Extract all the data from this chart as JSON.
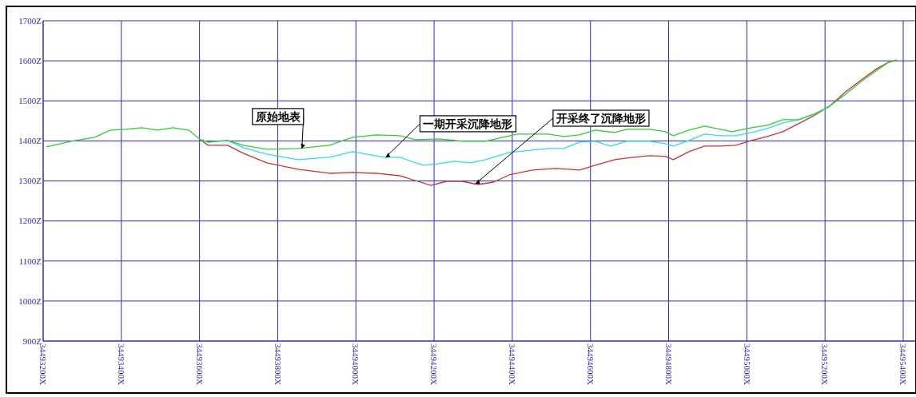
{
  "chart_data": {
    "type": "line",
    "grid": true,
    "marker": "none",
    "line_style": "solid",
    "xlim": [
      34493200,
      34495400
    ],
    "xticks": [
      {
        "value": 34493200,
        "label": "34493200X"
      },
      {
        "value": 34493400,
        "label": "34493400X"
      },
      {
        "value": 34493600,
        "label": "34493600X"
      },
      {
        "value": 34493800,
        "label": "34493800X"
      },
      {
        "value": 34494000,
        "label": "34494000X"
      },
      {
        "value": 34494200,
        "label": "34494200X"
      },
      {
        "value": 34494400,
        "label": "34494400X"
      },
      {
        "value": 34494600,
        "label": "34494600X"
      },
      {
        "value": 34494800,
        "label": "34494800X"
      },
      {
        "value": 34495000,
        "label": "34495000X"
      },
      {
        "value": 34495200,
        "label": "34495200X"
      },
      {
        "value": 34495400,
        "label": "34495400X"
      }
    ],
    "ylim": [
      900,
      1700
    ],
    "yticks": [
      {
        "value": 900,
        "label": "900Z"
      },
      {
        "value": 1000,
        "label": "1000Z"
      },
      {
        "value": 1100,
        "label": "1100Z"
      },
      {
        "value": 1200,
        "label": "1200Z"
      },
      {
        "value": 1300,
        "label": "1300Z"
      },
      {
        "value": 1400,
        "label": "1400Z"
      },
      {
        "value": 1500,
        "label": "1500Z"
      },
      {
        "value": 1600,
        "label": "1600Z"
      },
      {
        "value": 1700,
        "label": "1700Z"
      }
    ],
    "series": [
      {
        "color": "#cc3333",
        "x": [
          34493602,
          34493622,
          34493672,
          34493712,
          34493772,
          34493852,
          34493932,
          34493992,
          34494052,
          34494112,
          34494152,
          34494192,
          34494232,
          34494272,
          34494312,
          34494352,
          34494392,
          34494452,
          34494512,
          34494572,
          34494612,
          34494662,
          34494692,
          34494752,
          34494792,
          34494812,
          34494852,
          34494892,
          34494932,
          34494972,
          34495012,
          34495052,
          34495092,
          34495132,
          34495172,
          34495212,
          34495252,
          34495292,
          34495332,
          34495362,
          34495384
        ],
        "values": [
          1403,
          1389,
          1389,
          1369,
          1345,
          1329,
          1319,
          1321,
          1319,
          1313,
          1301,
          1289,
          1299,
          1299,
          1291,
          1297,
          1315,
          1327,
          1331,
          1327,
          1339,
          1353,
          1357,
          1363,
          1361,
          1353,
          1373,
          1387,
          1387,
          1389,
          1401,
          1411,
          1423,
          1443,
          1463,
          1487,
          1522,
          1552,
          1580,
          1596,
          1602
        ]
      },
      {
        "color": "#33dddd",
        "x": [
          34493602,
          34493622,
          34493672,
          34493712,
          34493772,
          34493852,
          34493932,
          34493992,
          34494072,
          34494112,
          34494172,
          34494212,
          34494252,
          34494292,
          34494332,
          34494392,
          34494452,
          34494492,
          34494532,
          34494572,
          34494612,
          34494652,
          34494692,
          34494752,
          34494792,
          34494812,
          34494852,
          34494892,
          34494932,
          34494972,
          34495012,
          34495052,
          34495092,
          34495132,
          34495172,
          34495212
        ],
        "values": [
          1403,
          1397,
          1401,
          1383,
          1367,
          1353,
          1359,
          1373,
          1359,
          1359,
          1339,
          1343,
          1349,
          1345,
          1353,
          1371,
          1377,
          1381,
          1381,
          1397,
          1399,
          1387,
          1399,
          1399,
          1393,
          1387,
          1401,
          1417,
          1413,
          1413,
          1421,
          1431,
          1445,
          1453,
          1467,
          1485
        ]
      },
      {
        "color": "#33cc33",
        "x": [
          34493208,
          34493272,
          34493332,
          34493372,
          34493412,
          34493452,
          34493492,
          34493532,
          34493572,
          34493602,
          34493622,
          34493672,
          34493712,
          34493772,
          34493852,
          34493932,
          34493992,
          34494052,
          34494112,
          34494152,
          34494212,
          34494272,
          34494332,
          34494412,
          34494492,
          34494532,
          34494572,
          34494612,
          34494662,
          34494692,
          34494752,
          34494792,
          34494812,
          34494852,
          34494892,
          34494932,
          34494962,
          34495012,
          34495052,
          34495092,
          34495132,
          34495172,
          34495212,
          34495252,
          34495292,
          34495332,
          34495362,
          34495384
        ],
        "values": [
          1385,
          1399,
          1409,
          1427,
          1429,
          1433,
          1427,
          1433,
          1427,
          1403,
          1397,
          1401,
          1389,
          1379,
          1381,
          1389,
          1409,
          1415,
          1413,
          1403,
          1405,
          1399,
          1399,
          1417,
          1417,
          1411,
          1415,
          1427,
          1421,
          1429,
          1429,
          1423,
          1413,
          1427,
          1437,
          1429,
          1423,
          1433,
          1439,
          1453,
          1453,
          1467,
          1487,
          1516,
          1548,
          1576,
          1596,
          1602
        ]
      }
    ],
    "annotations": [
      {
        "text": "原始地表",
        "x": 34493862,
        "y": 1381
      },
      {
        "text": "一期开采沉降地形",
        "x": 34494076,
        "y": 1359
      },
      {
        "text": "开采终了沉降地形",
        "x": 34494306,
        "y": 1293
      }
    ]
  }
}
